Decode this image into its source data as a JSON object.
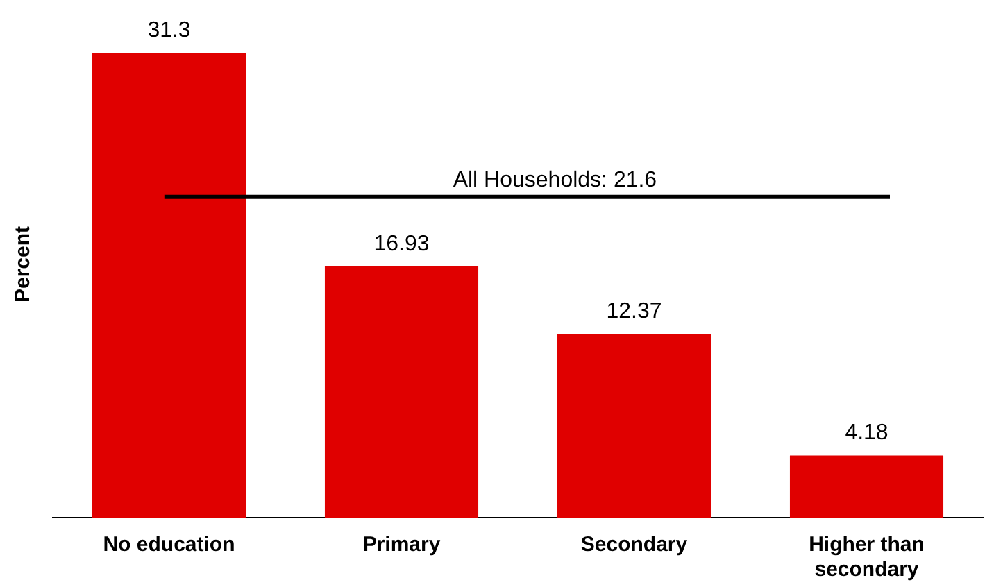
{
  "chart_data": {
    "type": "bar",
    "ylabel": "Percent",
    "categories": [
      "No education",
      "Primary",
      "Secondary",
      "Higher than secondary"
    ],
    "values": [
      31.3,
      16.93,
      12.37,
      4.18
    ],
    "color": "#e00000",
    "data_labels": true,
    "tick_labels": "x",
    "grid": false,
    "legend": false,
    "ref_lines": [
      {
        "axis": "y",
        "value": 21.6,
        "label": "All Households: 21.6"
      }
    ]
  }
}
